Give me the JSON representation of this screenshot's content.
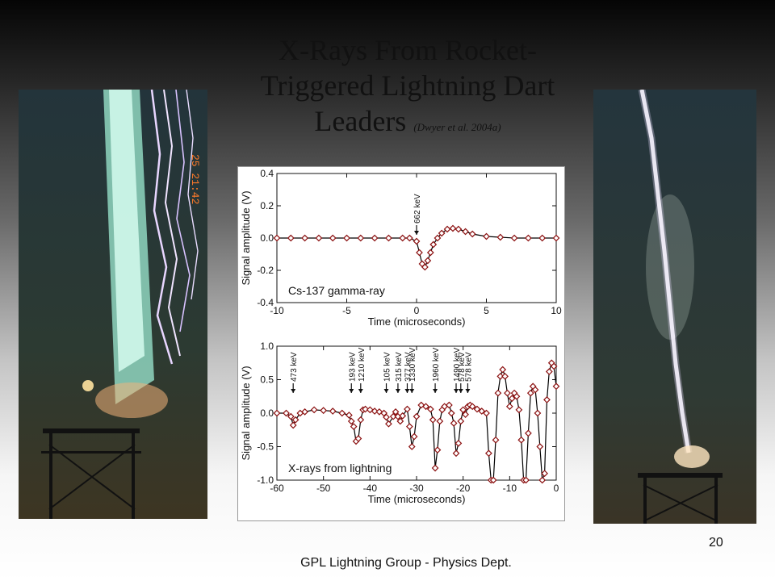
{
  "slide": {
    "title_line1": "X-Rays From Rocket-",
    "title_line2": "Triggered Lightning Dart",
    "title_line3": "Leaders",
    "citation": "(Dwyer et al. 2004a)",
    "page_number": "20",
    "footer": "GPL Lightning Group - Physics Dept."
  },
  "photo_left": {
    "timestamp": "25 21:42"
  },
  "colors": {
    "trace": "#000000",
    "marker": "#8b1010",
    "marker_fill": "#ffffff"
  },
  "chart_data": [
    {
      "type": "line",
      "xlabel": "Time (microseconds)",
      "ylabel": "Signal amplitude (V)",
      "xlim": [
        -10,
        10
      ],
      "ylim": [
        -0.4,
        0.4
      ],
      "xticks": [
        -10,
        -5,
        0,
        5,
        10
      ],
      "yticks": [
        -0.4,
        -0.2,
        0.0,
        0.2,
        0.4
      ],
      "yticklabels": [
        "-0.4",
        "-0.2",
        "0.0",
        "0.2",
        "0.4"
      ],
      "annotation": "Cs-137 gamma-ray",
      "arrows": [
        {
          "x": 0,
          "label": "662 keV"
        }
      ],
      "series": [
        {
          "x": [
            -10,
            -9,
            -8,
            -7,
            -6,
            -5,
            -4,
            -3,
            -2,
            -1,
            -0.5,
            0,
            0.2,
            0.4,
            0.6,
            0.8,
            1.0,
            1.2,
            1.5,
            1.8,
            2.2,
            2.6,
            3.0,
            3.5,
            4,
            5,
            6,
            7,
            8,
            9,
            10
          ],
          "y": [
            0,
            0,
            0,
            0,
            0,
            0,
            0,
            0,
            0,
            0,
            0,
            -0.02,
            -0.09,
            -0.16,
            -0.18,
            -0.14,
            -0.09,
            -0.04,
            0.0,
            0.03,
            0.055,
            0.06,
            0.055,
            0.04,
            0.025,
            0.01,
            0.005,
            0,
            0,
            0,
            0
          ]
        }
      ]
    },
    {
      "type": "line",
      "xlabel": "Time (microseconds)",
      "ylabel": "Signal amplitude (V)",
      "xlim": [
        -60,
        0
      ],
      "ylim": [
        -1.0,
        1.0
      ],
      "xticks": [
        -60,
        -50,
        -40,
        -30,
        -20,
        -10,
        0
      ],
      "yticks": [
        -1.0,
        -0.5,
        0.0,
        0.5,
        1.0
      ],
      "yticklabels": [
        "-1.0",
        "-0.5",
        "0.0",
        "0.5",
        "1.0"
      ],
      "annotation": "X-rays from lightning",
      "arrows": [
        {
          "x": -56.5,
          "label": "473 keV"
        },
        {
          "x": -44,
          "label": "193 keV"
        },
        {
          "x": -42,
          "label": "1210 keV"
        },
        {
          "x": -36.5,
          "label": "105 keV"
        },
        {
          "x": -34,
          "label": "315 keV"
        },
        {
          "x": -32,
          "label": "377 keV"
        },
        {
          "x": -31,
          "label": "1330 keV"
        },
        {
          "x": -26,
          "label": "1960 keV"
        },
        {
          "x": -21.5,
          "label": "1490 keV"
        },
        {
          "x": -20.5,
          "label": "578 keV"
        },
        {
          "x": -19,
          "label": "578 keV"
        }
      ],
      "series": [
        {
          "x": [
            -60,
            -58,
            -57,
            -56.5,
            -56,
            -55,
            -54,
            -52,
            -50,
            -48,
            -46,
            -44.5,
            -44,
            -43.5,
            -43,
            -42.5,
            -42,
            -41.5,
            -41,
            -40,
            -39,
            -38,
            -37,
            -36.5,
            -36,
            -35,
            -34.5,
            -34,
            -33.5,
            -33,
            -32,
            -31.5,
            -31,
            -30.5,
            -30,
            -29,
            -28,
            -27,
            -26.5,
            -26,
            -25.5,
            -25,
            -24.5,
            -24,
            -23,
            -22.5,
            -22,
            -21.5,
            -21,
            -20.5,
            -20,
            -19.5,
            -19,
            -18.5,
            -18,
            -17,
            -16,
            -15,
            -14.5,
            -14,
            -13.5,
            -13,
            -12.5,
            -12,
            -11.5,
            -11,
            -10.5,
            -10,
            -9.5,
            -9,
            -8.5,
            -8,
            -7.5,
            -7,
            -6.5,
            -6,
            -5.5,
            -5,
            -4.5,
            -4,
            -3.5,
            -3,
            -2.5,
            -2,
            -1.5,
            -1,
            -0.5,
            0
          ],
          "y": [
            0,
            0,
            -0.05,
            -0.18,
            -0.1,
            0,
            0.02,
            0.05,
            0.04,
            0.03,
            0,
            -0.03,
            -0.12,
            -0.2,
            -0.42,
            -0.38,
            -0.1,
            0.05,
            0.06,
            0.05,
            0.03,
            0.02,
            0,
            -0.06,
            -0.16,
            -0.05,
            0.02,
            -0.05,
            -0.12,
            -0.04,
            0.06,
            -0.2,
            -0.5,
            -0.35,
            -0.05,
            0.12,
            0.1,
            0.06,
            -0.1,
            -0.82,
            -0.55,
            -0.12,
            0.05,
            0.1,
            0.12,
            0.0,
            -0.15,
            -0.6,
            -0.45,
            -0.12,
            0.05,
            -0.02,
            0.1,
            0.12,
            0.1,
            0.06,
            0.03,
            0.0,
            -0.6,
            -1.0,
            -1.0,
            -0.4,
            0.3,
            0.55,
            0.65,
            0.55,
            0.3,
            0.1,
            0.22,
            0.3,
            0.25,
            0.05,
            -0.4,
            -1.0,
            -1.0,
            -0.3,
            0.3,
            0.4,
            0.35,
            0.0,
            -0.5,
            -1.0,
            -0.9,
            0.2,
            0.62,
            0.75,
            0.7,
            0.4
          ]
        }
      ]
    }
  ]
}
